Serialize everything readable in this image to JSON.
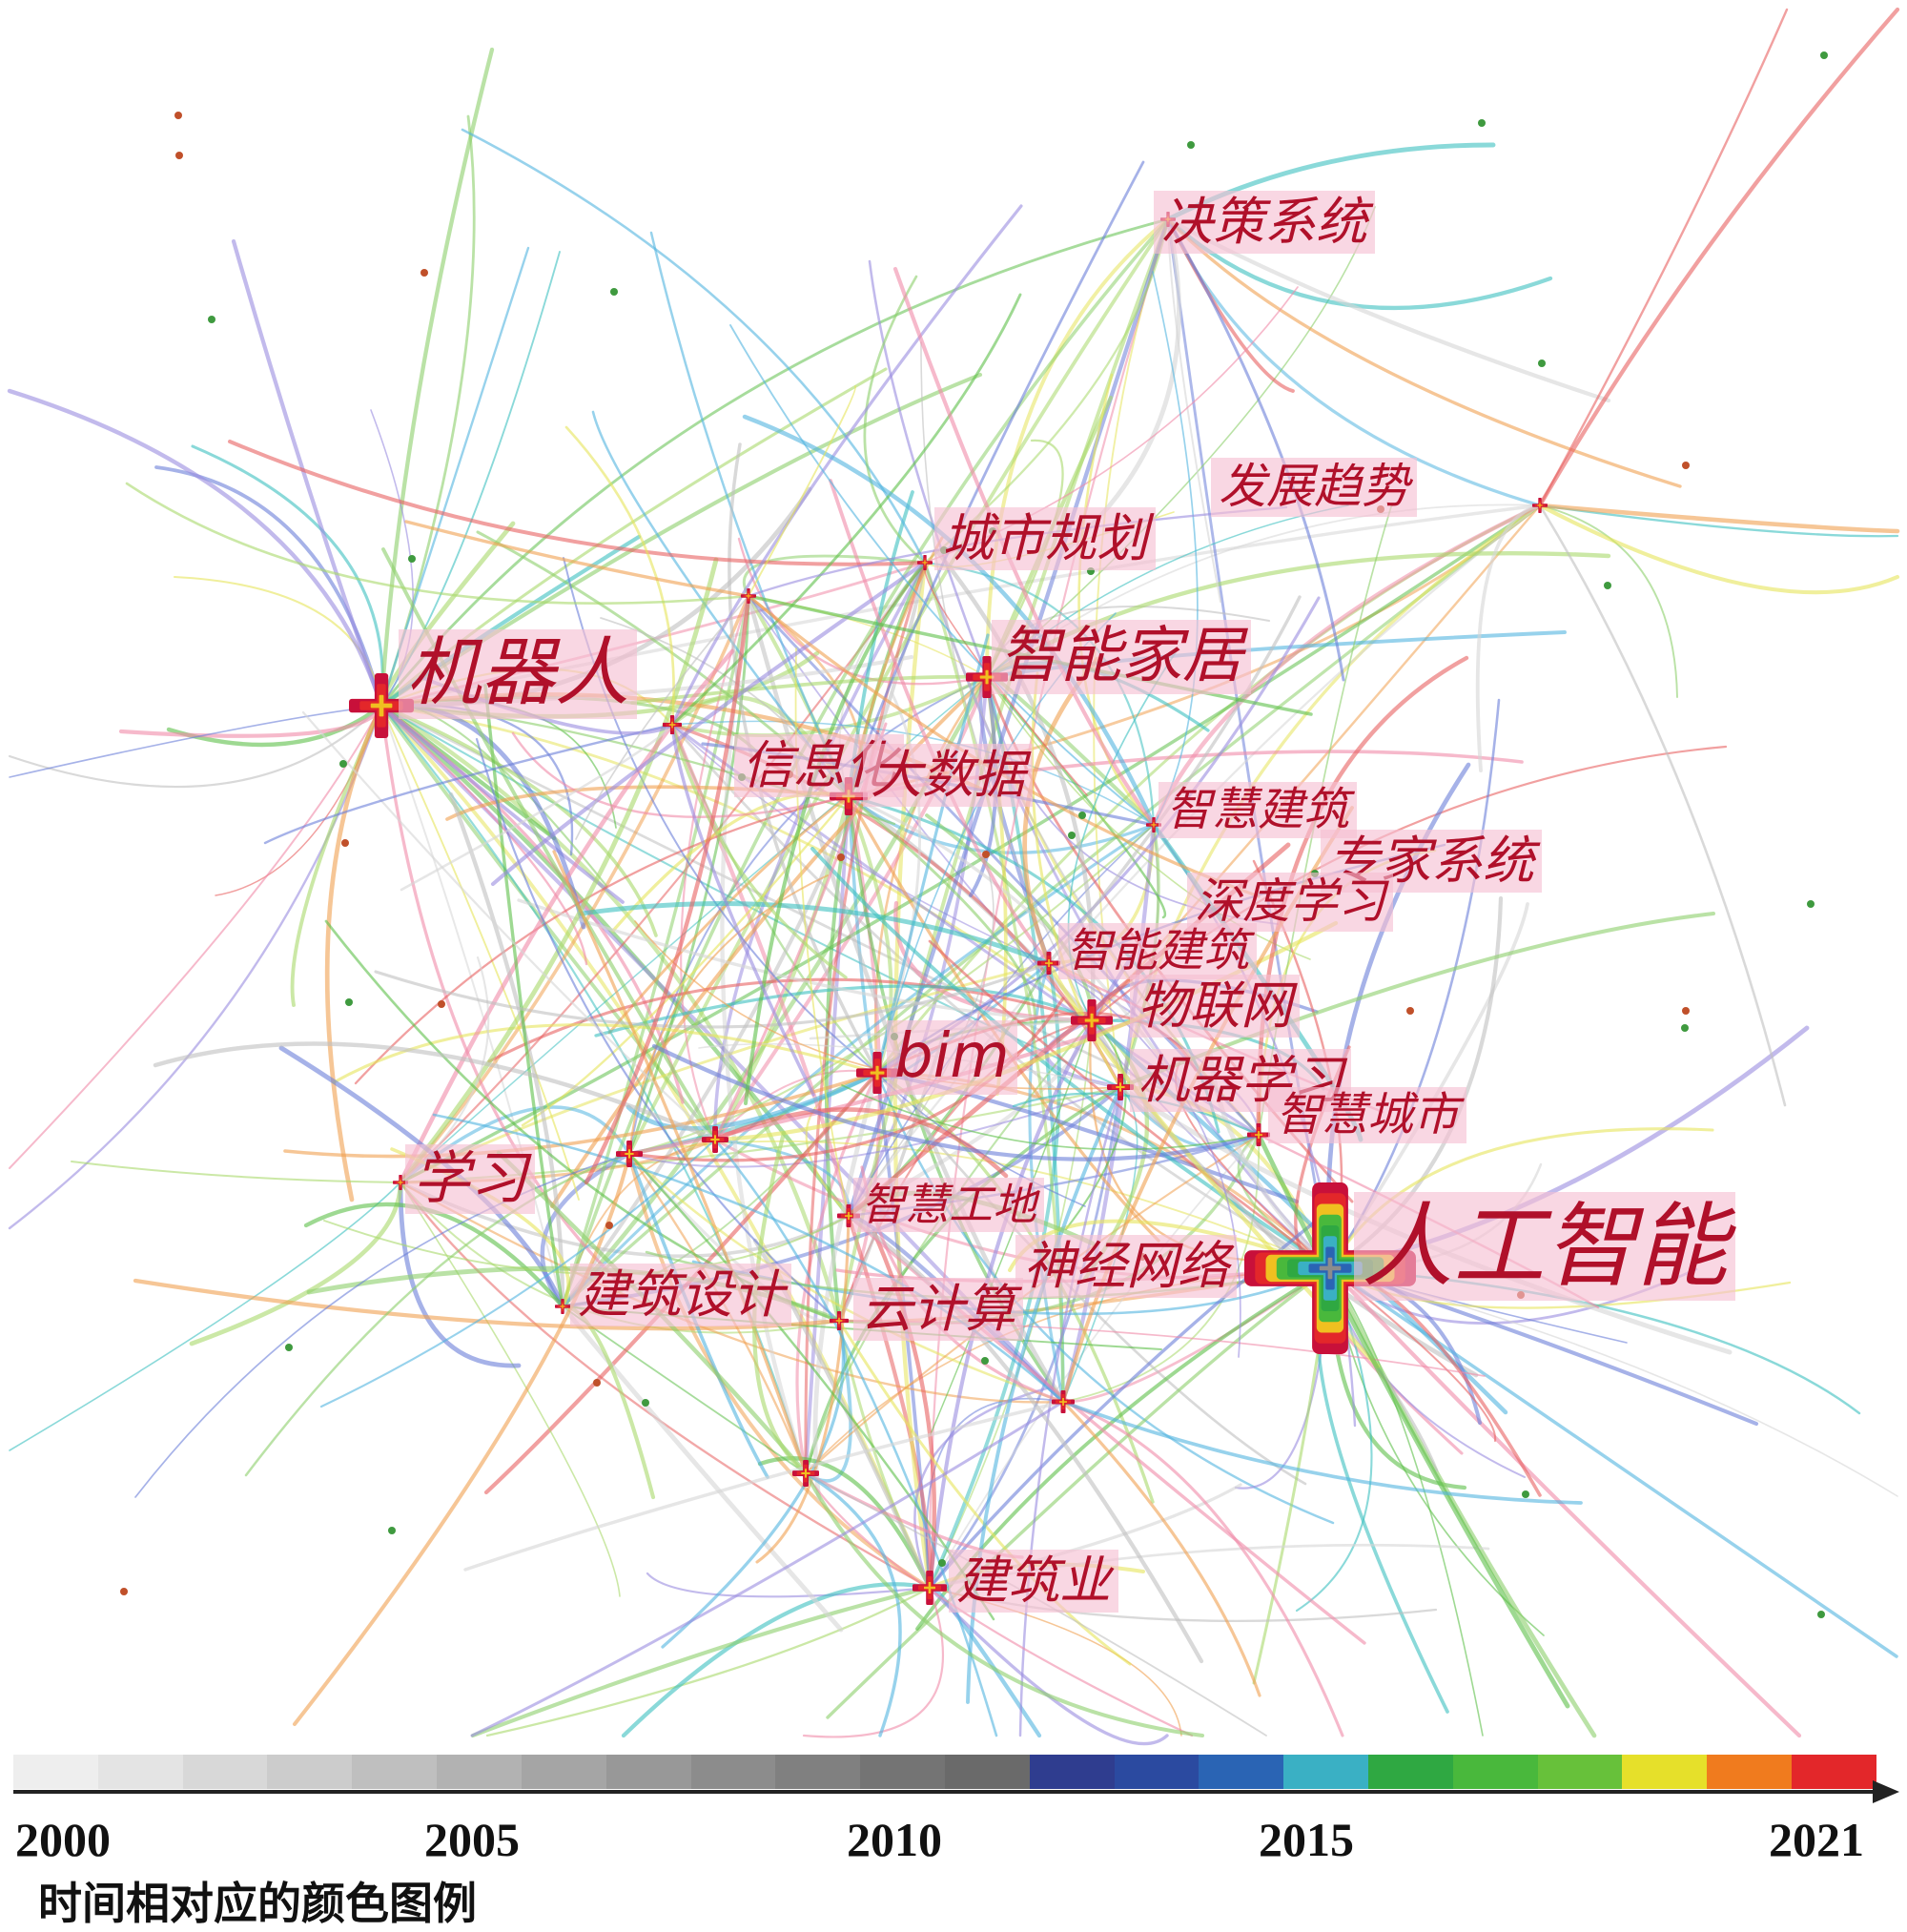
{
  "keywords": [
    {
      "id": "jiqiren",
      "label": "机器人"
    },
    {
      "id": "juece",
      "label": "决策系统"
    },
    {
      "id": "fazhan",
      "label": "发展趋势"
    },
    {
      "id": "chengshi",
      "label": "城市规划"
    },
    {
      "id": "zhinengjiaju",
      "label": "智能家居"
    },
    {
      "id": "xinxihua",
      "label": "信息化"
    },
    {
      "id": "dashuju",
      "label": "大数据"
    },
    {
      "id": "zhihuijianzhu",
      "label": "智慧建筑"
    },
    {
      "id": "zhuanjia",
      "label": "专家系统"
    },
    {
      "id": "shendu",
      "label": "深度学习"
    },
    {
      "id": "zhinengjianzhu",
      "label": "智能建筑"
    },
    {
      "id": "wulianwang",
      "label": "物联网"
    },
    {
      "id": "bim",
      "label": "bim"
    },
    {
      "id": "jiqixuexi",
      "label": "机器学习"
    },
    {
      "id": "zhihuichengshi",
      "label": "智慧城市"
    },
    {
      "id": "xuexi",
      "label": "学习"
    },
    {
      "id": "zhihuigongdi",
      "label": "智慧工地"
    },
    {
      "id": "rengong",
      "label": "人工智能"
    },
    {
      "id": "shenjing",
      "label": "神经网络"
    },
    {
      "id": "jianzhusheji",
      "label": "建筑设计"
    },
    {
      "id": "yunjisuan",
      "label": "云计算"
    },
    {
      "id": "jianzhuye",
      "label": "建筑业"
    }
  ],
  "timeline": {
    "years": [
      "2000",
      "2005",
      "2010",
      "2015",
      "2021"
    ],
    "caption": "时间相对应的颜色图例",
    "colors": [
      "#eeeeee",
      "#e4e4e4",
      "#d8d8d8",
      "#cccccc",
      "#bfbfbf",
      "#b2b2b2",
      "#a5a5a5",
      "#989898",
      "#8c8c8c",
      "#808080",
      "#747474",
      "#6a6a6a",
      "#2f3d8f",
      "#2b4aa0",
      "#2a64b4",
      "#3ab0c4",
      "#2fa842",
      "#49b83c",
      "#67c13a",
      "#e6e02a",
      "#f07b1e",
      "#e3272a"
    ]
  }
}
